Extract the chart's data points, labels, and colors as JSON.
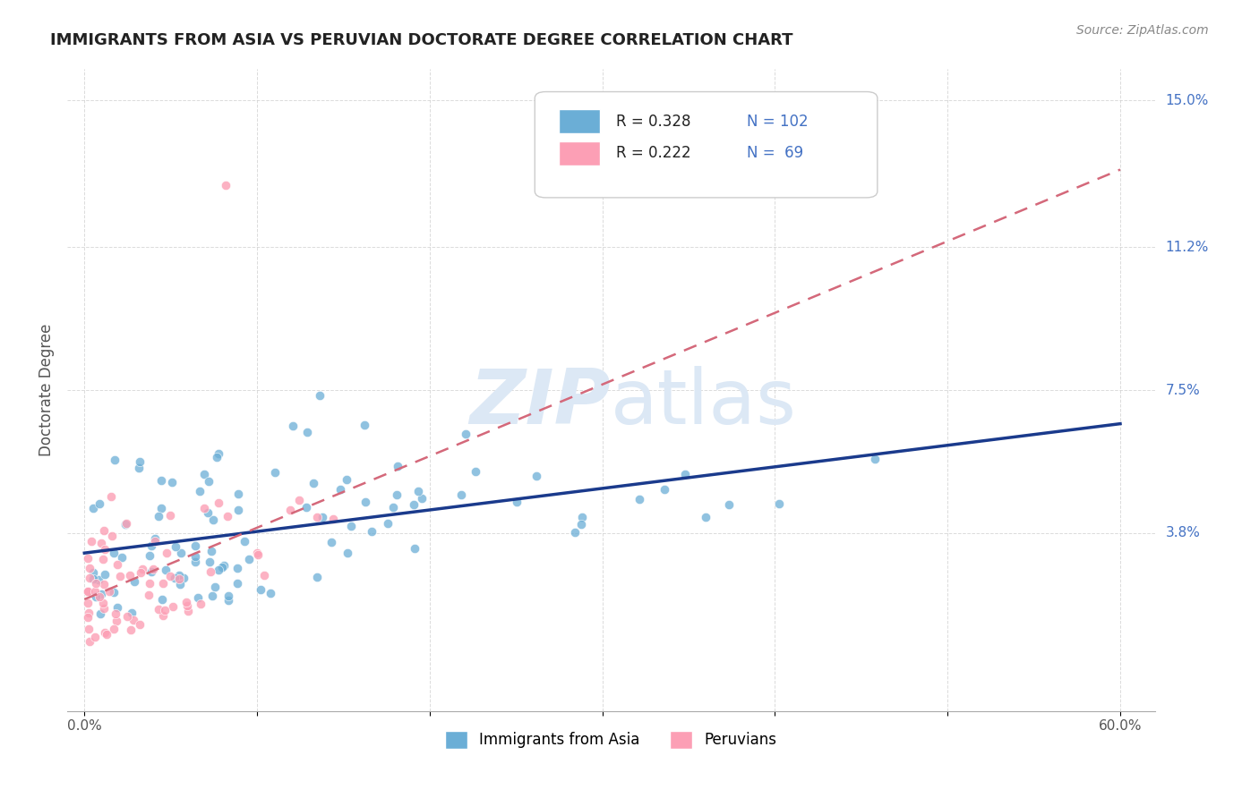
{
  "title": "IMMIGRANTS FROM ASIA VS PERUVIAN DOCTORATE DEGREE CORRELATION CHART",
  "source": "Source: ZipAtlas.com",
  "ylabel_label": "Doctorate Degree",
  "right_ytick_vals": [
    0.038,
    0.075,
    0.112,
    0.15
  ],
  "right_ytick_labels": [
    "3.8%",
    "7.5%",
    "11.2%",
    "15.0%"
  ],
  "xlim": [
    -0.01,
    0.62
  ],
  "ylim": [
    -0.008,
    0.158
  ],
  "legend_blue_R": "0.328",
  "legend_blue_N": "102",
  "legend_pink_R": "0.222",
  "legend_pink_N": "69",
  "blue_color": "#6baed6",
  "pink_color": "#fc9fb5",
  "trendline_blue_color": "#1a3a8c",
  "trendline_pink_color": "#d4687a",
  "watermark_zip_color": "#dce8f5",
  "watermark_atlas_color": "#dce8f5",
  "legend_label_blue": "Immigrants from Asia",
  "legend_label_pink": "Peruvians",
  "legend_value_color": "#4472c4",
  "right_label_color": "#4472c4",
  "grid_color": "#cccccc",
  "background_color": "#ffffff",
  "seed_blue": 7,
  "seed_pink": 13,
  "n_blue": 102,
  "n_pink": 69
}
